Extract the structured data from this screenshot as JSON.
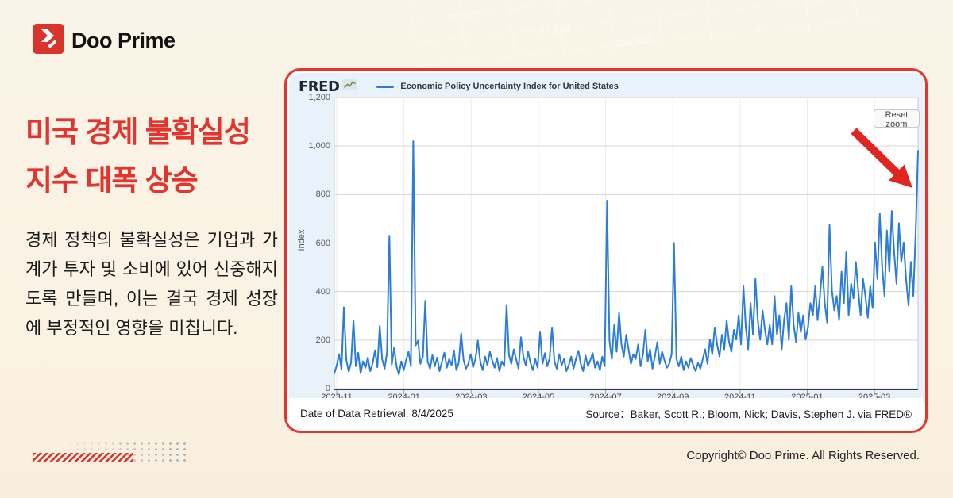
{
  "page": {
    "background_color": "#FAF3E6",
    "copyright": "Copyright© Doo Prime. All Rights Reserved."
  },
  "logo": {
    "brand": "Doo Prime"
  },
  "headline": {
    "line1": "미국 경제 불확실성",
    "line2": "지수 대폭 상승"
  },
  "body_text": "경제 정책의 불확실성은 기업과 가계가 투자 및 소비에 있어 신중해지도록 만들며, 이는 결국 경제 성장에 부정적인 영향을 미칩니다.",
  "chart_card": {
    "fred_logo": "FRED",
    "legend_label": "Economic Policy Uncertainty Index for United States",
    "reset_zoom_label": "Reset zoom",
    "retrieval_text": "Date of Data Retrieval: 8/4/2025",
    "source_text": "Source：Baker, Scott R.; Bloom, Nick; Davis, Stephen J. via FRED®"
  },
  "colors": {
    "brand_red": "#E3342E",
    "line_blue": "#2B7CDB",
    "chart_bg": "#E9F2FB",
    "page_bg": "#FAF3E6"
  },
  "decor": {
    "watermark_numbers": [
      "40,497",
      "62,269",
      "104,021"
    ]
  },
  "chart_data": {
    "type": "line",
    "title": "Economic Policy Uncertainty Index for United States",
    "ylabel": "Index",
    "ylim": [
      0,
      1200
    ],
    "yticks": [
      0,
      200,
      400,
      600,
      800,
      1000,
      1200
    ],
    "yticklabels": [
      "0",
      "200",
      "400",
      "600",
      "800",
      "1,000",
      "1,200"
    ],
    "xticklabels": [
      "2023-11",
      "2024-01",
      "2024-03",
      "2024-05",
      "2024-07",
      "2024-09",
      "2024-11",
      "2025-01",
      "2025-03"
    ],
    "x_range": "2023-11 to 2025-04 (daily)",
    "grid": true,
    "legend_position": "top",
    "annotation": "Red arrow highlights final spike of ~980 in early April 2025",
    "series": [
      {
        "name": "Economic Policy Uncertainty Index for United States",
        "values": [
          62,
          95,
          142,
          78,
          335,
          118,
          70,
          108,
          282,
          92,
          148,
          63,
          112,
          86,
          128,
          72,
          103,
          158,
          88,
          258,
          122,
          82,
          148,
          630,
          98,
          168,
          92,
          58,
          112,
          76,
          118,
          152,
          92,
          1020,
          178,
          198,
          102,
          132,
          362,
          112,
          82,
          138,
          92,
          128,
          72,
          112,
          148,
          86,
          122,
          96,
          158,
          76,
          106,
          228,
          118,
          82,
          102,
          142,
          88,
          122,
          198,
          112,
          76,
          132,
          96,
          152,
          116,
          86,
          126,
          72,
          112,
          92,
          345,
          138,
          102,
          162,
          122,
          82,
          212,
          132,
          96,
          152,
          106,
          76,
          122,
          86,
          232,
          102,
          146,
          92,
          126,
          252,
          112,
          82,
          142,
          96,
          122,
          72,
          96,
          132,
          82,
          122,
          156,
          102,
          72,
          136,
          92,
          116,
          146,
          86,
          112,
          76,
          132,
          92,
          775,
          198,
          122,
          262,
          152,
          312,
          182,
          132,
          222,
          162,
          102,
          142,
          122,
          182,
          92,
          142,
          242,
          112,
          162,
          82,
          132,
          192,
          102,
          152,
          116,
          86,
          102,
          142,
          600,
          122,
          92,
          132,
          76,
          112,
          86,
          126,
          96,
          72,
          106,
          82,
          122,
          162,
          102,
          202,
          142,
          252,
          182,
          132,
          222,
          162,
          282,
          192,
          152,
          242,
          202,
          302,
          182,
          422,
          252,
          162,
          352,
          222,
          452,
          282,
          202,
          322,
          242,
          182,
          262,
          182,
          382,
          222,
          302,
          162,
          282,
          352,
          202,
          422,
          262,
          192,
          312,
          232,
          302,
          202,
          252,
          352,
          302,
          422,
          282,
          382,
          502,
          352,
          272,
          675,
          402,
          322,
          382,
          282,
          482,
          352,
          562,
          302,
          432,
          372,
          522,
          402,
          302,
          452,
          382,
          292,
          422,
          332,
          602,
          452,
          722,
          502,
          382,
          652,
          482,
          732,
          562,
          432,
          682,
          522,
          602,
          452,
          342,
          522,
          382,
          642,
          980
        ]
      }
    ]
  }
}
